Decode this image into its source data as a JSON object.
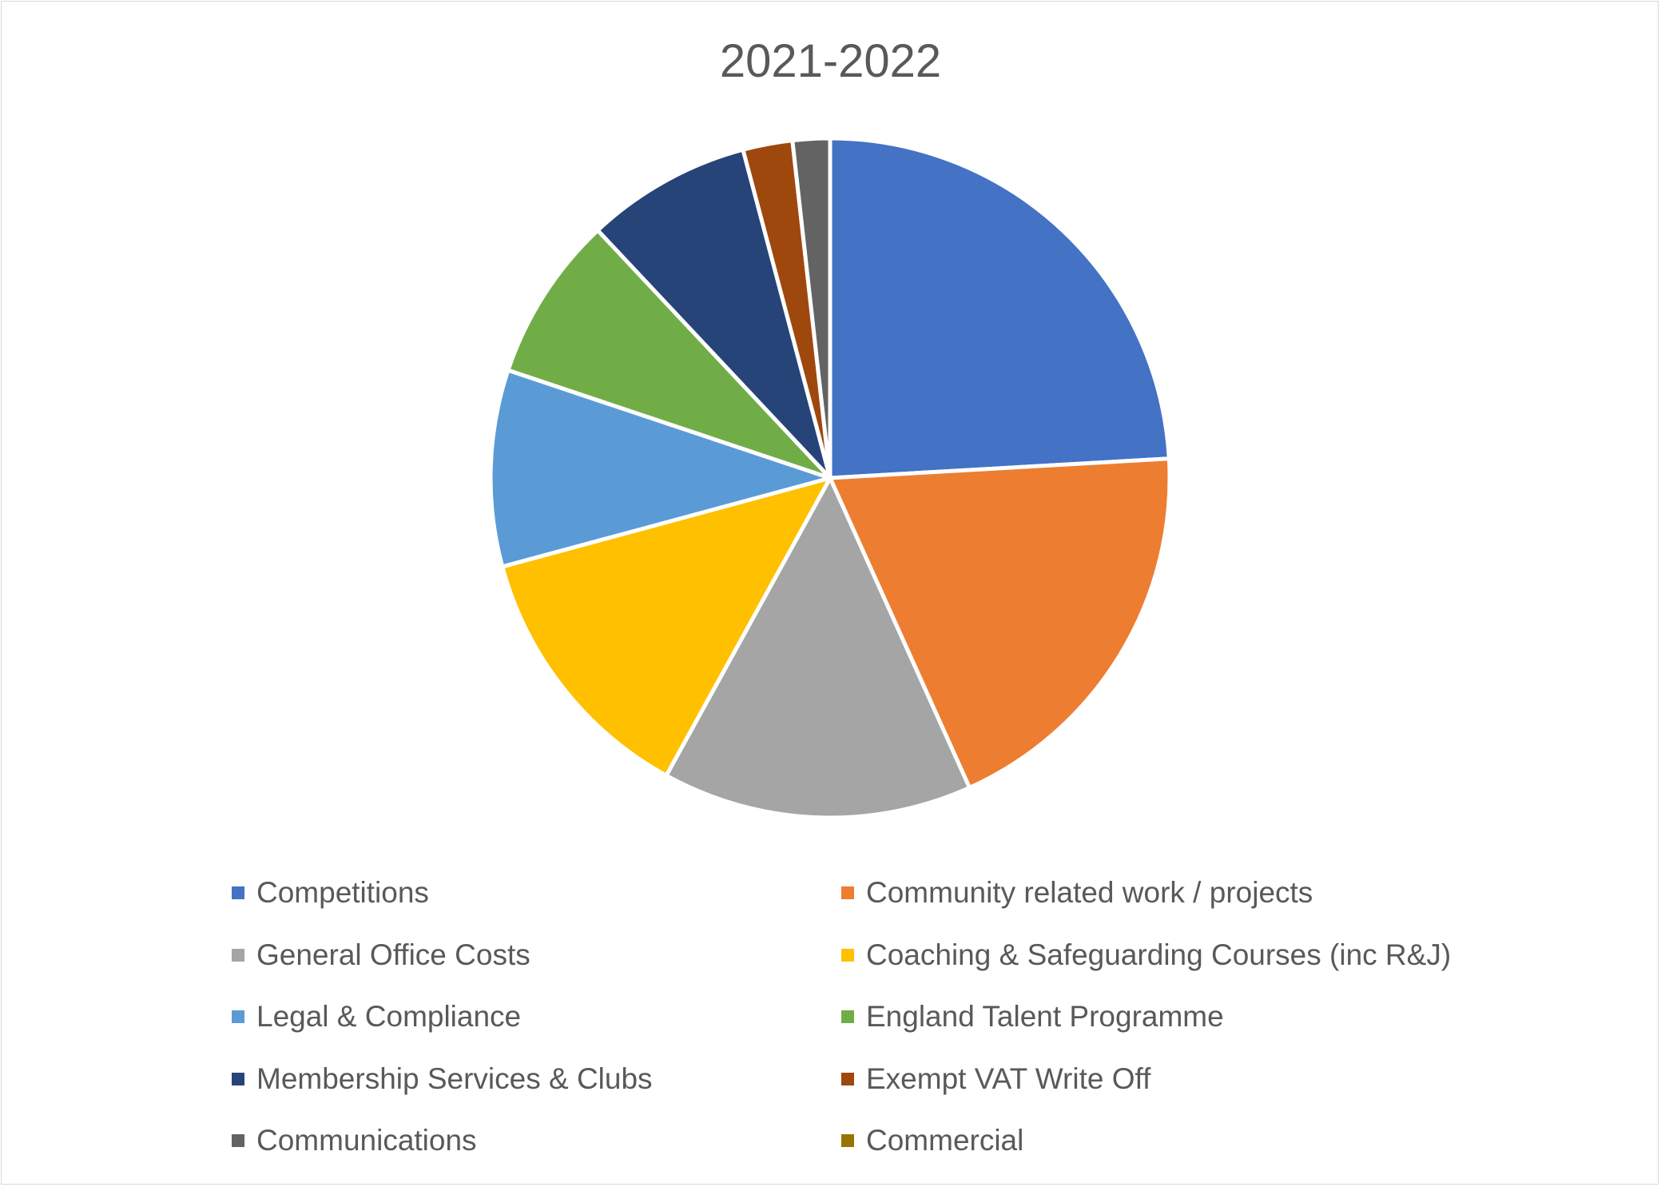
{
  "chart_data": {
    "type": "pie",
    "title": "2021-2022",
    "legend_position": "bottom",
    "slices": [
      {
        "label": "Competitions",
        "value": 24.5,
        "color": "#4472C4"
      },
      {
        "label": "Community related work / projects",
        "value": 19.5,
        "color": "#ED7D31"
      },
      {
        "label": "General Office Costs",
        "value": 15.0,
        "color": "#A5A5A5"
      },
      {
        "label": "Coaching & Safeguarding Courses (inc R&J)",
        "value": 13.0,
        "color": "#FFC000"
      },
      {
        "label": "Legal & Compliance",
        "value": 9.5,
        "color": "#5B9BD5"
      },
      {
        "label": "England Talent Programme",
        "value": 8.0,
        "color": "#70AD47"
      },
      {
        "label": "Membership Services & Clubs",
        "value": 8.0,
        "color": "#264478"
      },
      {
        "label": "Exempt VAT Write Off",
        "value": 2.4,
        "color": "#9E480E"
      },
      {
        "label": "Communications",
        "value": 1.8,
        "color": "#636363"
      },
      {
        "label": "Commercial",
        "value": 0.0,
        "color": "#997300"
      }
    ]
  }
}
